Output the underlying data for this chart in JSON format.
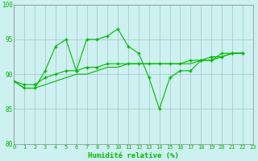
{
  "background_color": "#cdf0f0",
  "grid_color": "#aacccc",
  "line_color": "#00bb00",
  "xlabel": "Humidité relative (%)",
  "ylim": [
    80,
    100
  ],
  "xlim": [
    0,
    23
  ],
  "yticks": [
    80,
    85,
    90,
    95,
    100
  ],
  "xticks": [
    0,
    1,
    2,
    3,
    4,
    5,
    6,
    7,
    8,
    9,
    10,
    11,
    12,
    13,
    14,
    15,
    16,
    17,
    18,
    19,
    20,
    21,
    22,
    23
  ],
  "series1": [
    89,
    88,
    88,
    90.5,
    94,
    95,
    90.5,
    95,
    95,
    95.5,
    96.5,
    94,
    93,
    89.5,
    85,
    89.5,
    90.5,
    90.5,
    92,
    92,
    93,
    93,
    93
  ],
  "series2": [
    89,
    88.5,
    88.5,
    89.5,
    90,
    90.5,
    90.5,
    91,
    91,
    91.5,
    91.5,
    91.5,
    91.5,
    91.5,
    91.5,
    91.5,
    91.5,
    92,
    92,
    92.5,
    92.5,
    93,
    93
  ],
  "series3": [
    89,
    88,
    88,
    88.5,
    89,
    89.5,
    90,
    90,
    90.5,
    91,
    91,
    91.5,
    91.5,
    91.5,
    91.5,
    91.5,
    91.5,
    91.5,
    92,
    92,
    92.5,
    93,
    93
  ]
}
